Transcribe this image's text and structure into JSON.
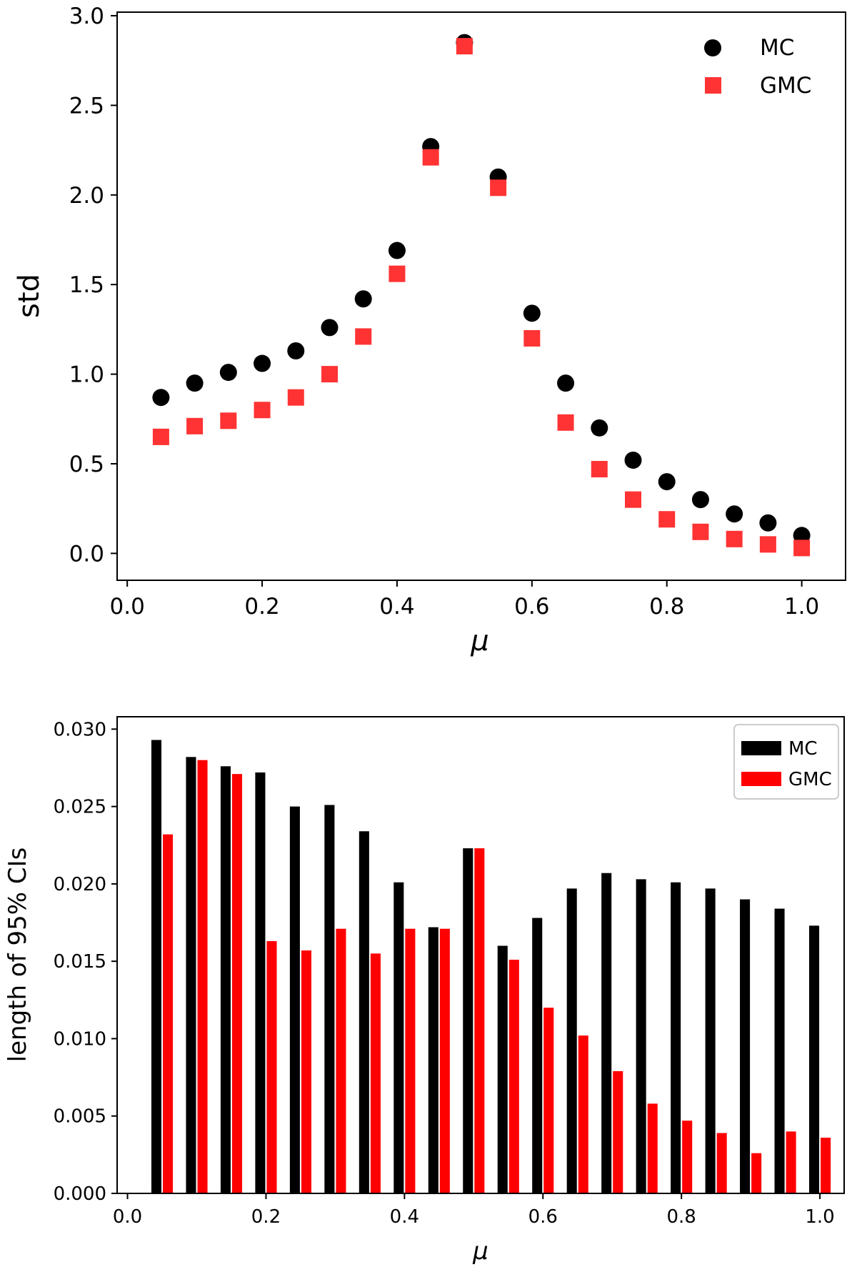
{
  "colors": {
    "mc": "#000000",
    "gmc": "#ff0000",
    "gmc_marker": "#ff3333"
  },
  "chart_data": [
    {
      "type": "scatter",
      "title": "",
      "xlabel": "μ",
      "ylabel": "std",
      "xlim": [
        -0.015,
        1.065
      ],
      "ylim": [
        -0.15,
        3.02
      ],
      "xticks": [
        0.0,
        0.2,
        0.4,
        0.6,
        0.8,
        1.0
      ],
      "xtick_labels": [
        "0.0",
        "0.2",
        "0.4",
        "0.6",
        "0.8",
        "1.0"
      ],
      "yticks": [
        0.0,
        0.5,
        1.0,
        1.5,
        2.0,
        2.5,
        3.0
      ],
      "ytick_labels": [
        "0.0",
        "0.5",
        "1.0",
        "1.5",
        "2.0",
        "2.5",
        "3.0"
      ],
      "legend_position": "top-right",
      "x": [
        0.05,
        0.1,
        0.15,
        0.2,
        0.25,
        0.3,
        0.35,
        0.4,
        0.45,
        0.5,
        0.55,
        0.6,
        0.65,
        0.7,
        0.75,
        0.8,
        0.85,
        0.9,
        0.95,
        1.0
      ],
      "series": [
        {
          "name": "MC",
          "marker": "circle",
          "values": [
            0.87,
            0.95,
            1.01,
            1.06,
            1.13,
            1.26,
            1.42,
            1.69,
            2.27,
            2.85,
            2.1,
            1.34,
            0.95,
            0.7,
            0.52,
            0.4,
            0.3,
            0.22,
            0.17,
            0.1
          ]
        },
        {
          "name": "GMC",
          "marker": "square",
          "values": [
            0.65,
            0.71,
            0.74,
            0.8,
            0.87,
            1.0,
            1.21,
            1.56,
            2.21,
            2.83,
            2.04,
            1.2,
            0.73,
            0.47,
            0.3,
            0.19,
            0.12,
            0.08,
            0.05,
            0.03
          ]
        }
      ]
    },
    {
      "type": "bar",
      "title": "",
      "xlabel": "μ",
      "ylabel": "length of 95% CIs",
      "xlim": [
        -0.015,
        1.035
      ],
      "ylim": [
        0.0,
        0.0308
      ],
      "xticks": [
        0.0,
        0.2,
        0.4,
        0.6,
        0.8,
        1.0
      ],
      "xtick_labels": [
        "0.0",
        "0.2",
        "0.4",
        "0.6",
        "0.8",
        "1.0"
      ],
      "yticks": [
        0.0,
        0.005,
        0.01,
        0.015,
        0.02,
        0.025,
        0.03
      ],
      "ytick_labels": [
        "0.000",
        "0.005",
        "0.010",
        "0.015",
        "0.020",
        "0.025",
        "0.030"
      ],
      "legend_position": "top-right",
      "x": [
        0.05,
        0.1,
        0.15,
        0.2,
        0.25,
        0.3,
        0.35,
        0.4,
        0.45,
        0.5,
        0.55,
        0.6,
        0.65,
        0.7,
        0.75,
        0.8,
        0.85,
        0.9,
        0.95,
        1.0
      ],
      "series": [
        {
          "name": "MC",
          "values": [
            0.0293,
            0.0282,
            0.0276,
            0.0272,
            0.025,
            0.0251,
            0.0234,
            0.0201,
            0.0172,
            0.0223,
            0.016,
            0.0178,
            0.0197,
            0.0207,
            0.0203,
            0.0201,
            0.0197,
            0.019,
            0.0184,
            0.0173
          ]
        },
        {
          "name": "GMC",
          "values": [
            0.0232,
            0.028,
            0.0271,
            0.0163,
            0.0157,
            0.0171,
            0.0155,
            0.0171,
            0.0171,
            0.0223,
            0.0151,
            0.012,
            0.0102,
            0.0079,
            0.0058,
            0.0047,
            0.0039,
            0.0026,
            0.004,
            0.0036
          ]
        }
      ]
    }
  ]
}
